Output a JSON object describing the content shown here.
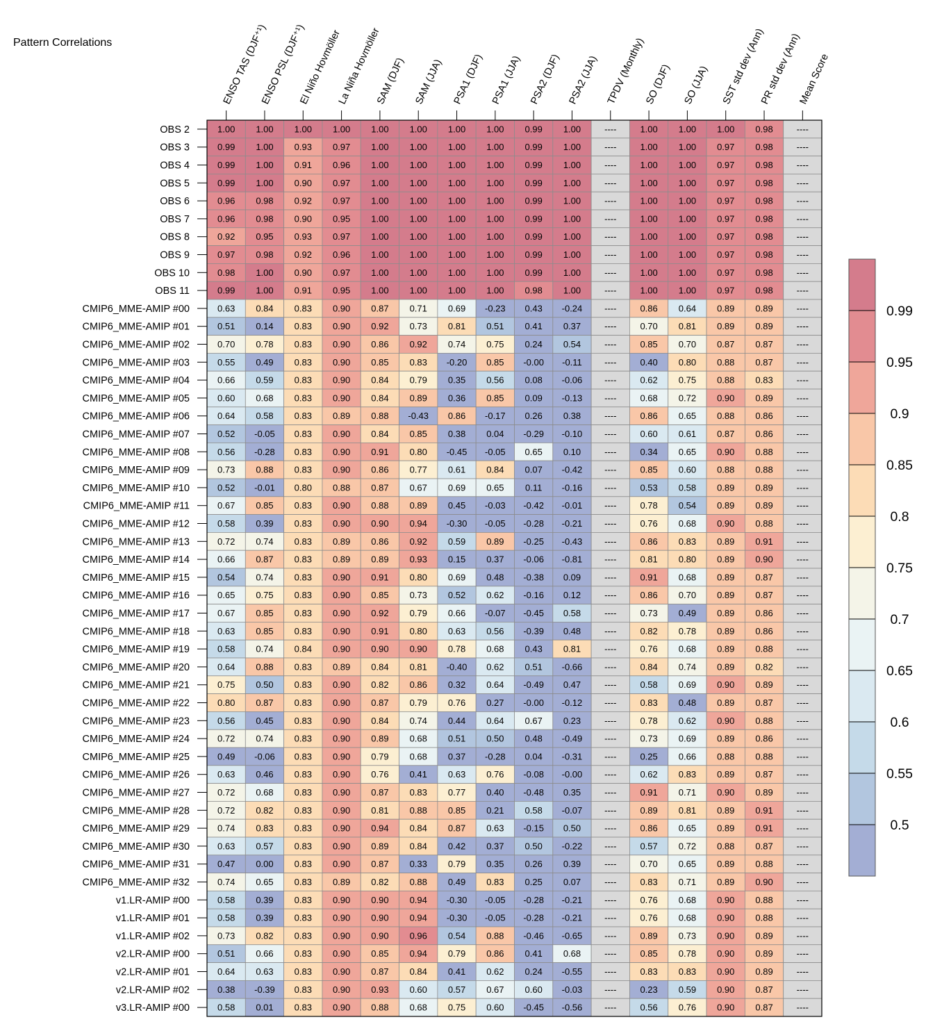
{
  "chart_data": {
    "type": "heatmap",
    "title": "Pattern Correlations",
    "columns": [
      "ENSO TAS (DJF⁺¹)",
      "ENSO PSL (DJF⁺¹)",
      "El Niño Hovmöller",
      "La Niña Hovmöller",
      "SAM (DJF)",
      "SAM (JJA)",
      "PSA1 (DJF)",
      "PSA1 (JJA)",
      "PSA2 (DJF)",
      "PSA2 (JJA)",
      "TPDV (Monthly)",
      "SO (DJF)",
      "SO (JJA)",
      "SST std dev (Ann)",
      "PR std dev (Ann)",
      "Mean Score"
    ],
    "rows": [
      "OBS 2",
      "OBS 3",
      "OBS 4",
      "OBS 5",
      "OBS 6",
      "OBS 7",
      "OBS 8",
      "OBS 9",
      "OBS 10",
      "OBS 11",
      "CMIP6_MME-AMIP  #00",
      "CMIP6_MME-AMIP  #01",
      "CMIP6_MME-AMIP  #02",
      "CMIP6_MME-AMIP  #03",
      "CMIP6_MME-AMIP  #04",
      "CMIP6_MME-AMIP  #05",
      "CMIP6_MME-AMIP  #06",
      "CMIP6_MME-AMIP  #07",
      "CMIP6_MME-AMIP  #08",
      "CMIP6_MME-AMIP  #09",
      "CMIP6_MME-AMIP  #10",
      "CMIP6_MME-AMIP  #11",
      "CMIP6_MME-AMIP  #12",
      "CMIP6_MME-AMIP  #13",
      "CMIP6_MME-AMIP  #14",
      "CMIP6_MME-AMIP  #15",
      "CMIP6_MME-AMIP  #16",
      "CMIP6_MME-AMIP  #17",
      "CMIP6_MME-AMIP  #18",
      "CMIP6_MME-AMIP  #19",
      "CMIP6_MME-AMIP  #20",
      "CMIP6_MME-AMIP  #21",
      "CMIP6_MME-AMIP  #22",
      "CMIP6_MME-AMIP  #23",
      "CMIP6_MME-AMIP  #24",
      "CMIP6_MME-AMIP  #25",
      "CMIP6_MME-AMIP  #26",
      "CMIP6_MME-AMIP  #27",
      "CMIP6_MME-AMIP  #28",
      "CMIP6_MME-AMIP  #29",
      "CMIP6_MME-AMIP  #30",
      "CMIP6_MME-AMIP  #31",
      "CMIP6_MME-AMIP  #32",
      "v1.LR-AMIP  #00",
      "v1.LR-AMIP  #01",
      "v1.LR-AMIP  #02",
      "v2.LR-AMIP  #00",
      "v2.LR-AMIP  #01",
      "v2.LR-AMIP  #02",
      "v3.LR-AMIP  #00"
    ],
    "values": [
      [
        "1.00",
        "1.00",
        "1.00",
        "1.00",
        "1.00",
        "1.00",
        "1.00",
        "1.00",
        "0.99",
        "1.00",
        "----",
        "1.00",
        "1.00",
        "1.00",
        "0.98",
        "----"
      ],
      [
        "0.99",
        "1.00",
        "0.93",
        "0.97",
        "1.00",
        "1.00",
        "1.00",
        "1.00",
        "0.99",
        "1.00",
        "----",
        "1.00",
        "1.00",
        "0.97",
        "0.98",
        "----"
      ],
      [
        "0.99",
        "1.00",
        "0.91",
        "0.96",
        "1.00",
        "1.00",
        "1.00",
        "1.00",
        "0.99",
        "1.00",
        "----",
        "1.00",
        "1.00",
        "0.97",
        "0.98",
        "----"
      ],
      [
        "0.99",
        "1.00",
        "0.90",
        "0.97",
        "1.00",
        "1.00",
        "1.00",
        "1.00",
        "0.99",
        "1.00",
        "----",
        "1.00",
        "1.00",
        "0.97",
        "0.98",
        "----"
      ],
      [
        "0.96",
        "0.98",
        "0.92",
        "0.97",
        "1.00",
        "1.00",
        "1.00",
        "1.00",
        "0.99",
        "1.00",
        "----",
        "1.00",
        "1.00",
        "0.97",
        "0.98",
        "----"
      ],
      [
        "0.96",
        "0.98",
        "0.90",
        "0.95",
        "1.00",
        "1.00",
        "1.00",
        "1.00",
        "0.99",
        "1.00",
        "----",
        "1.00",
        "1.00",
        "0.97",
        "0.98",
        "----"
      ],
      [
        "0.92",
        "0.95",
        "0.93",
        "0.97",
        "1.00",
        "1.00",
        "1.00",
        "1.00",
        "0.99",
        "1.00",
        "----",
        "1.00",
        "1.00",
        "0.97",
        "0.98",
        "----"
      ],
      [
        "0.97",
        "0.98",
        "0.92",
        "0.96",
        "1.00",
        "1.00",
        "1.00",
        "1.00",
        "0.99",
        "1.00",
        "----",
        "1.00",
        "1.00",
        "0.97",
        "0.98",
        "----"
      ],
      [
        "0.98",
        "1.00",
        "0.90",
        "0.97",
        "1.00",
        "1.00",
        "1.00",
        "1.00",
        "0.99",
        "1.00",
        "----",
        "1.00",
        "1.00",
        "0.97",
        "0.98",
        "----"
      ],
      [
        "0.99",
        "1.00",
        "0.91",
        "0.95",
        "1.00",
        "1.00",
        "1.00",
        "1.00",
        "0.98",
        "1.00",
        "----",
        "1.00",
        "1.00",
        "0.97",
        "0.98",
        "----"
      ],
      [
        "0.63",
        "0.84",
        "0.83",
        "0.90",
        "0.87",
        "0.71",
        "0.69",
        "-0.23",
        "0.43",
        "-0.24",
        "----",
        "0.86",
        "0.64",
        "0.89",
        "0.89",
        "----"
      ],
      [
        "0.51",
        "0.14",
        "0.83",
        "0.90",
        "0.92",
        "0.73",
        "0.81",
        "0.51",
        "0.41",
        "0.37",
        "----",
        "0.70",
        "0.81",
        "0.89",
        "0.89",
        "----"
      ],
      [
        "0.70",
        "0.78",
        "0.83",
        "0.90",
        "0.86",
        "0.92",
        "0.74",
        "0.75",
        "0.24",
        "0.54",
        "----",
        "0.85",
        "0.70",
        "0.87",
        "0.87",
        "----"
      ],
      [
        "0.55",
        "0.49",
        "0.83",
        "0.90",
        "0.85",
        "0.83",
        "-0.20",
        "0.85",
        "-0.00",
        "-0.11",
        "----",
        "0.40",
        "0.80",
        "0.88",
        "0.87",
        "----"
      ],
      [
        "0.66",
        "0.59",
        "0.83",
        "0.90",
        "0.84",
        "0.79",
        "0.35",
        "0.56",
        "0.08",
        "-0.06",
        "----",
        "0.62",
        "0.75",
        "0.88",
        "0.83",
        "----"
      ],
      [
        "0.60",
        "0.68",
        "0.83",
        "0.90",
        "0.84",
        "0.89",
        "0.36",
        "0.85",
        "0.09",
        "-0.13",
        "----",
        "0.68",
        "0.72",
        "0.90",
        "0.89",
        "----"
      ],
      [
        "0.64",
        "0.58",
        "0.83",
        "0.89",
        "0.88",
        "-0.43",
        "0.86",
        "-0.17",
        "0.26",
        "0.38",
        "----",
        "0.86",
        "0.65",
        "0.88",
        "0.86",
        "----"
      ],
      [
        "0.52",
        "-0.05",
        "0.83",
        "0.90",
        "0.84",
        "0.85",
        "0.38",
        "0.04",
        "-0.29",
        "-0.10",
        "----",
        "0.60",
        "0.61",
        "0.87",
        "0.86",
        "----"
      ],
      [
        "0.56",
        "-0.28",
        "0.83",
        "0.90",
        "0.91",
        "0.80",
        "-0.45",
        "-0.05",
        "0.65",
        "0.10",
        "----",
        "0.34",
        "0.65",
        "0.90",
        "0.88",
        "----"
      ],
      [
        "0.73",
        "0.88",
        "0.83",
        "0.90",
        "0.86",
        "0.77",
        "0.61",
        "0.84",
        "0.07",
        "-0.42",
        "----",
        "0.85",
        "0.60",
        "0.88",
        "0.88",
        "----"
      ],
      [
        "0.52",
        "-0.01",
        "0.80",
        "0.88",
        "0.87",
        "0.67",
        "0.69",
        "0.65",
        "0.11",
        "-0.16",
        "----",
        "0.53",
        "0.58",
        "0.89",
        "0.89",
        "----"
      ],
      [
        "0.67",
        "0.85",
        "0.83",
        "0.90",
        "0.88",
        "0.89",
        "0.45",
        "-0.03",
        "-0.42",
        "-0.01",
        "----",
        "0.78",
        "0.54",
        "0.89",
        "0.89",
        "----"
      ],
      [
        "0.58",
        "0.39",
        "0.83",
        "0.90",
        "0.90",
        "0.94",
        "-0.30",
        "-0.05",
        "-0.28",
        "-0.21",
        "----",
        "0.76",
        "0.68",
        "0.90",
        "0.88",
        "----"
      ],
      [
        "0.72",
        "0.74",
        "0.83",
        "0.89",
        "0.86",
        "0.92",
        "0.59",
        "0.89",
        "-0.25",
        "-0.43",
        "----",
        "0.86",
        "0.83",
        "0.89",
        "0.91",
        "----"
      ],
      [
        "0.66",
        "0.87",
        "0.83",
        "0.89",
        "0.89",
        "0.93",
        "0.15",
        "0.37",
        "-0.06",
        "-0.81",
        "----",
        "0.81",
        "0.80",
        "0.89",
        "0.90",
        "----"
      ],
      [
        "0.54",
        "0.74",
        "0.83",
        "0.90",
        "0.91",
        "0.80",
        "0.69",
        "0.48",
        "-0.38",
        "0.09",
        "----",
        "0.91",
        "0.68",
        "0.89",
        "0.87",
        "----"
      ],
      [
        "0.65",
        "0.75",
        "0.83",
        "0.90",
        "0.85",
        "0.73",
        "0.52",
        "0.62",
        "-0.16",
        "0.12",
        "----",
        "0.86",
        "0.70",
        "0.89",
        "0.87",
        "----"
      ],
      [
        "0.67",
        "0.85",
        "0.83",
        "0.90",
        "0.92",
        "0.79",
        "0.66",
        "-0.07",
        "-0.45",
        "0.58",
        "----",
        "0.73",
        "0.49",
        "0.89",
        "0.86",
        "----"
      ],
      [
        "0.63",
        "0.85",
        "0.83",
        "0.90",
        "0.91",
        "0.80",
        "0.63",
        "0.56",
        "-0.39",
        "0.48",
        "----",
        "0.82",
        "0.78",
        "0.89",
        "0.86",
        "----"
      ],
      [
        "0.58",
        "0.74",
        "0.84",
        "0.90",
        "0.90",
        "0.90",
        "0.78",
        "0.68",
        "0.43",
        "0.81",
        "----",
        "0.76",
        "0.68",
        "0.89",
        "0.88",
        "----"
      ],
      [
        "0.64",
        "0.88",
        "0.83",
        "0.89",
        "0.84",
        "0.81",
        "-0.40",
        "0.62",
        "0.51",
        "-0.66",
        "----",
        "0.84",
        "0.74",
        "0.89",
        "0.82",
        "----"
      ],
      [
        "0.75",
        "0.50",
        "0.83",
        "0.90",
        "0.82",
        "0.86",
        "0.32",
        "0.64",
        "-0.49",
        "0.47",
        "----",
        "0.58",
        "0.69",
        "0.90",
        "0.89",
        "----"
      ],
      [
        "0.80",
        "0.87",
        "0.83",
        "0.90",
        "0.87",
        "0.79",
        "0.76",
        "0.27",
        "-0.00",
        "-0.12",
        "----",
        "0.83",
        "0.48",
        "0.89",
        "0.87",
        "----"
      ],
      [
        "0.56",
        "0.45",
        "0.83",
        "0.90",
        "0.84",
        "0.74",
        "0.44",
        "0.64",
        "0.67",
        "0.23",
        "----",
        "0.78",
        "0.62",
        "0.90",
        "0.88",
        "----"
      ],
      [
        "0.72",
        "0.74",
        "0.83",
        "0.90",
        "0.89",
        "0.68",
        "0.51",
        "0.50",
        "0.48",
        "-0.49",
        "----",
        "0.73",
        "0.69",
        "0.89",
        "0.86",
        "----"
      ],
      [
        "0.49",
        "-0.06",
        "0.83",
        "0.90",
        "0.79",
        "0.68",
        "0.37",
        "-0.28",
        "0.04",
        "-0.31",
        "----",
        "0.25",
        "0.66",
        "0.88",
        "0.88",
        "----"
      ],
      [
        "0.63",
        "0.46",
        "0.83",
        "0.90",
        "0.76",
        "0.41",
        "0.63",
        "0.76",
        "-0.08",
        "-0.00",
        "----",
        "0.62",
        "0.83",
        "0.89",
        "0.87",
        "----"
      ],
      [
        "0.72",
        "0.68",
        "0.83",
        "0.90",
        "0.87",
        "0.83",
        "0.77",
        "0.40",
        "-0.48",
        "0.35",
        "----",
        "0.91",
        "0.71",
        "0.90",
        "0.89",
        "----"
      ],
      [
        "0.72",
        "0.82",
        "0.83",
        "0.90",
        "0.81",
        "0.88",
        "0.85",
        "0.21",
        "0.58",
        "-0.07",
        "----",
        "0.89",
        "0.81",
        "0.89",
        "0.91",
        "----"
      ],
      [
        "0.74",
        "0.83",
        "0.83",
        "0.90",
        "0.94",
        "0.84",
        "0.87",
        "0.63",
        "-0.15",
        "0.50",
        "----",
        "0.86",
        "0.65",
        "0.89",
        "0.91",
        "----"
      ],
      [
        "0.63",
        "0.57",
        "0.83",
        "0.90",
        "0.89",
        "0.84",
        "0.42",
        "0.37",
        "0.50",
        "-0.22",
        "----",
        "0.57",
        "0.72",
        "0.88",
        "0.87",
        "----"
      ],
      [
        "0.47",
        "0.00",
        "0.83",
        "0.90",
        "0.87",
        "0.33",
        "0.79",
        "0.35",
        "0.26",
        "0.39",
        "----",
        "0.70",
        "0.65",
        "0.89",
        "0.88",
        "----"
      ],
      [
        "0.74",
        "0.65",
        "0.83",
        "0.89",
        "0.82",
        "0.88",
        "0.49",
        "0.83",
        "0.25",
        "0.07",
        "----",
        "0.83",
        "0.71",
        "0.89",
        "0.90",
        "----"
      ],
      [
        "0.58",
        "0.39",
        "0.83",
        "0.90",
        "0.90",
        "0.94",
        "-0.30",
        "-0.05",
        "-0.28",
        "-0.21",
        "----",
        "0.76",
        "0.68",
        "0.90",
        "0.88",
        "----"
      ],
      [
        "0.58",
        "0.39",
        "0.83",
        "0.90",
        "0.90",
        "0.94",
        "-0.30",
        "-0.05",
        "-0.28",
        "-0.21",
        "----",
        "0.76",
        "0.68",
        "0.90",
        "0.88",
        "----"
      ],
      [
        "0.73",
        "0.82",
        "0.83",
        "0.90",
        "0.90",
        "0.96",
        "0.54",
        "0.88",
        "-0.46",
        "-0.65",
        "----",
        "0.89",
        "0.73",
        "0.90",
        "0.89",
        "----"
      ],
      [
        "0.51",
        "0.66",
        "0.83",
        "0.90",
        "0.85",
        "0.94",
        "0.79",
        "0.86",
        "0.41",
        "0.68",
        "----",
        "0.85",
        "0.78",
        "0.90",
        "0.89",
        "----"
      ],
      [
        "0.64",
        "0.63",
        "0.83",
        "0.90",
        "0.87",
        "0.84",
        "0.41",
        "0.62",
        "0.24",
        "-0.55",
        "----",
        "0.83",
        "0.83",
        "0.90",
        "0.89",
        "----"
      ],
      [
        "0.38",
        "-0.39",
        "0.83",
        "0.90",
        "0.93",
        "0.60",
        "0.57",
        "0.67",
        "0.60",
        "-0.03",
        "----",
        "0.23",
        "0.59",
        "0.90",
        "0.87",
        "----"
      ],
      [
        "0.58",
        "0.01",
        "0.83",
        "0.90",
        "0.88",
        "0.68",
        "0.75",
        "0.60",
        "-0.45",
        "-0.56",
        "----",
        "0.56",
        "0.76",
        "0.90",
        "0.87",
        "----"
      ]
    ],
    "colorbar": {
      "ticks": [
        "0.5",
        "0.55",
        "0.6",
        "0.65",
        "0.7",
        "0.75",
        "0.8",
        "0.85",
        "0.9",
        "0.95",
        "0.99"
      ],
      "boundaries": [
        0.5,
        0.55,
        0.6,
        0.65,
        0.7,
        0.75,
        0.8,
        0.85,
        0.9,
        0.95,
        0.99
      ],
      "colors": [
        "#a3aed4",
        "#b2c6df",
        "#c5dae9",
        "#dae9f1",
        "#eaf3f4",
        "#f4f4e8",
        "#fcefd2",
        "#fcdcb6",
        "#f9c7a8",
        "#efa69a",
        "#e28c91",
        "#d47c8c"
      ],
      "missing_color": "#d9d9d9"
    }
  }
}
